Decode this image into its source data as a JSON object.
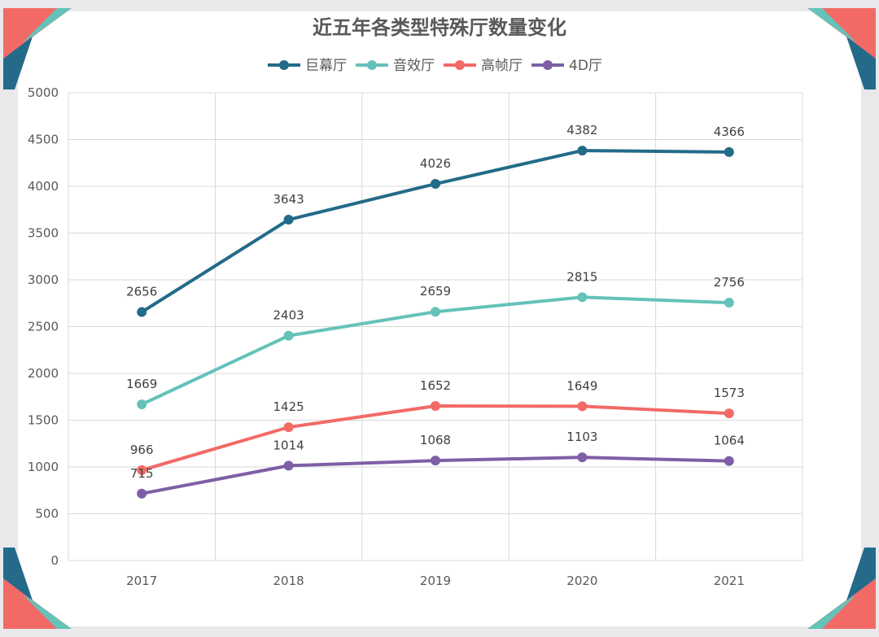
{
  "colors": {
    "background": "#ffffff",
    "frame": "#e9e9ec",
    "corner_red": "#f26a66",
    "corner_teal": "#64c2b9",
    "corner_blue": "#236b89",
    "grid": "#d9d9d9",
    "text": "#595959",
    "title": "#595959"
  },
  "chart_data": {
    "type": "line",
    "title": "近五年各类型特殊厅数量变化",
    "xlabel": "",
    "ylabel": "",
    "categories": [
      "2017",
      "2018",
      "2019",
      "2020",
      "2021"
    ],
    "ylim": [
      0,
      5000
    ],
    "yticks": [
      0,
      500,
      1000,
      1500,
      2000,
      2500,
      3000,
      3500,
      4000,
      4500,
      5000
    ],
    "grid": true,
    "legend_position": "top",
    "series": [
      {
        "name": "巨幕厅",
        "color": "#236b89",
        "values": [
          2656,
          3643,
          4026,
          4382,
          4366
        ]
      },
      {
        "name": "音效厅",
        "color": "#64c2b9",
        "values": [
          1669,
          2403,
          2659,
          2815,
          2756
        ]
      },
      {
        "name": "高帧厅",
        "color": "#f26a66",
        "values": [
          966,
          1425,
          1652,
          1649,
          1573
        ]
      },
      {
        "name": "4D厅",
        "color": "#7e5fa6",
        "values": [
          715,
          1014,
          1068,
          1103,
          1064
        ]
      }
    ]
  }
}
